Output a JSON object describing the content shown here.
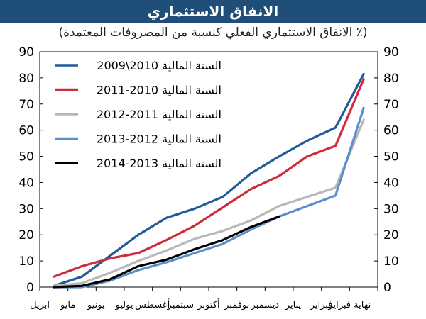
{
  "title": "الانفاق الاستثماري",
  "subtitle": "(٪ الانفاق الاستثماري الفعلي كنسبة من المصروفات المعتمدة)",
  "colors": {
    "title_bg": "#1f4e79",
    "series": [
      "#1f5c99",
      "#d12a3a",
      "#b8b8b8",
      "#5b8fcc",
      "#000000"
    ]
  },
  "chart_data": {
    "type": "line",
    "title": "الانفاق الاستثماري",
    "subtitle": "(٪ الانفاق الاستثماري الفعلي كنسبة من المصروفات المعتمدة)",
    "categories": [
      "ابريل",
      "مايو",
      "يونيو",
      "يوليو",
      "أغسطس",
      "سبتمبر",
      "أكتوبر",
      "نوفمبر",
      "ديسمبر",
      "يناير",
      "فبراير",
      "نهاية فبراير"
    ],
    "ylim": [
      0,
      90
    ],
    "yticks": [
      0,
      10,
      20,
      30,
      40,
      50,
      60,
      70,
      80,
      90
    ],
    "y_axis_left": true,
    "y_axis_right": true,
    "grid": false,
    "legend_position": "top-left",
    "series": [
      {
        "name": "السنة المالية 2010\\2009",
        "values": [
          0.5,
          4,
          12,
          20,
          26.5,
          30,
          34.5,
          43.5,
          50,
          56,
          61,
          81.5
        ]
      },
      {
        "name": "السنة المالية 2010-2011",
        "values": [
          4,
          8,
          11,
          13,
          18,
          23.5,
          30.5,
          37.5,
          42.5,
          50,
          54,
          79.5
        ]
      },
      {
        "name": "السنة المالية 2011-2012",
        "values": [
          0.5,
          1.5,
          5.5,
          10,
          14,
          18.5,
          21.5,
          25.5,
          31,
          34.5,
          38,
          64
        ]
      },
      {
        "name": "السنة المالية 2012-2013",
        "values": [
          0,
          0,
          2.5,
          6.5,
          9.5,
          13,
          16.5,
          22,
          27,
          31,
          35,
          68.5
        ]
      },
      {
        "name": "السنة المالية 2013-2014",
        "values": [
          0,
          0.5,
          3,
          8,
          10.5,
          14.5,
          18,
          23,
          27,
          null,
          null,
          null
        ]
      }
    ]
  }
}
